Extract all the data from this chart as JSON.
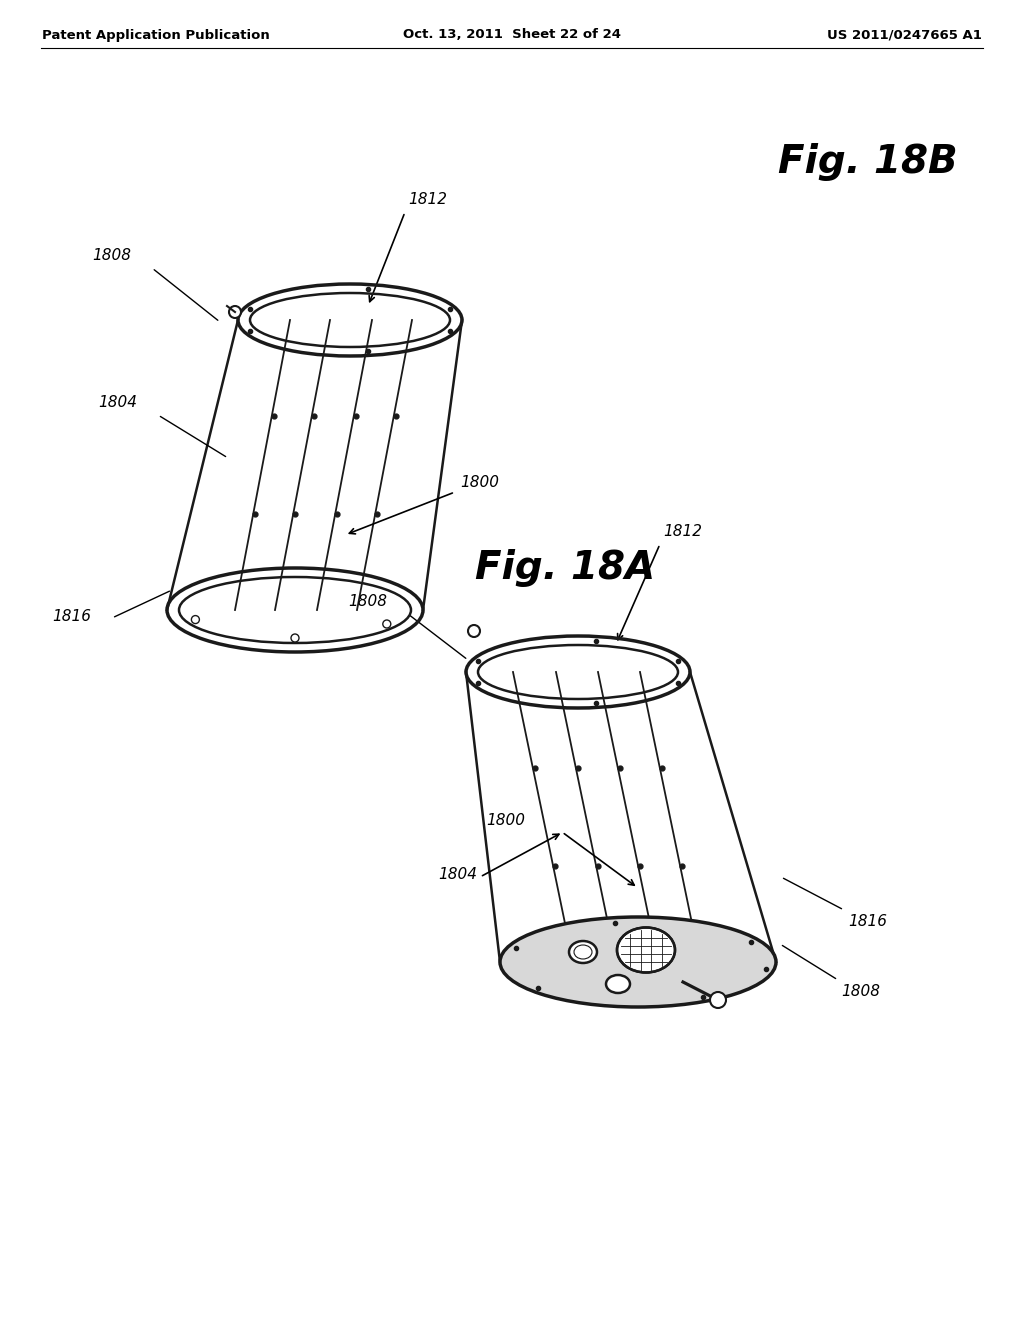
{
  "header_left": "Patent Application Publication",
  "header_center": "Oct. 13, 2011  Sheet 22 of 24",
  "header_right": "US 2011/0247665 A1",
  "fig_a_label": "Fig. 18A",
  "fig_b_label": "Fig. 18B",
  "background": "#ffffff",
  "line_color": "#1a1a1a",
  "text_color": "#000000",
  "lw_main": 1.8,
  "lw_thick": 2.5,
  "lw_thin": 0.8,
  "ref_fontsize": 11,
  "fig_label_fontsize": 28,
  "header_fontsize": 9.5
}
